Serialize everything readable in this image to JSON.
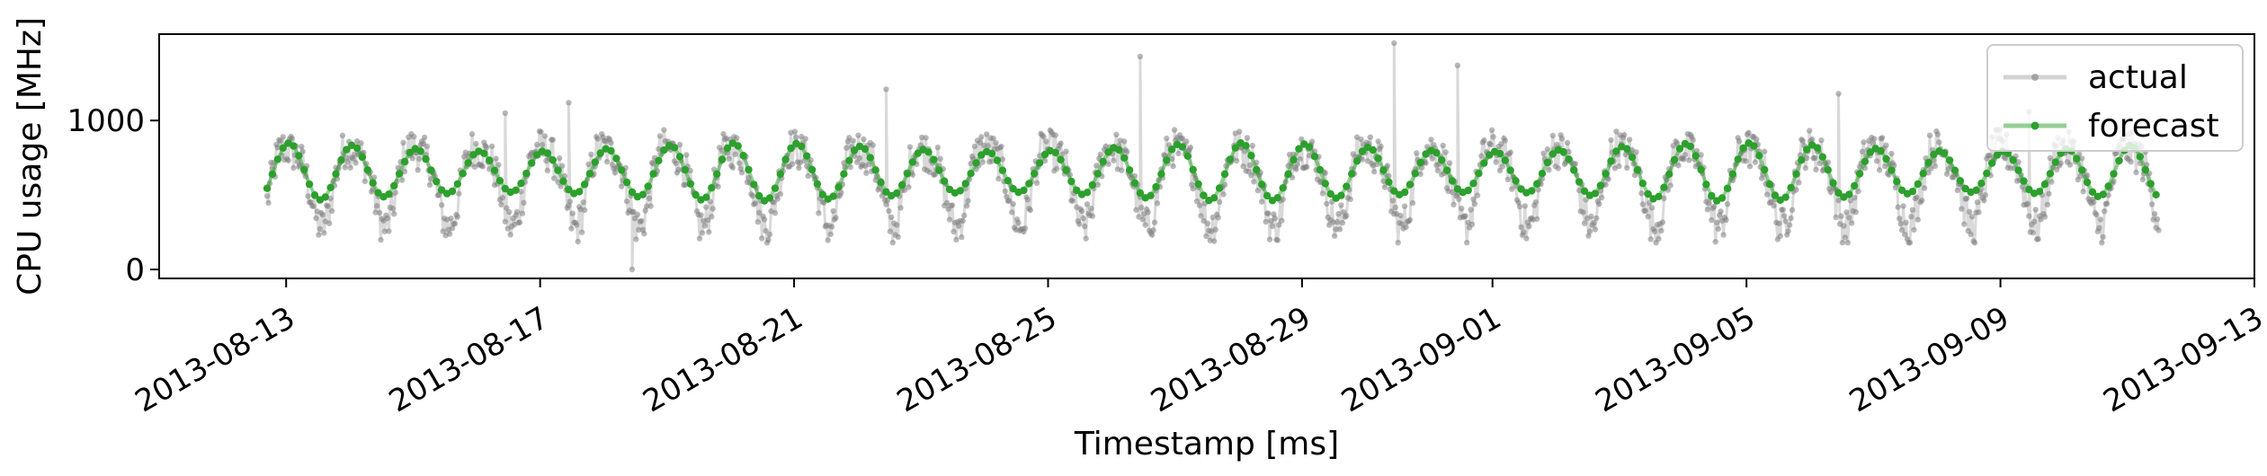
{
  "chart_data": {
    "type": "line",
    "title": "",
    "xlabel": "Timestamp [ms]",
    "ylabel": "CPU usage [MHz]",
    "x_range": [
      "2013-08-11",
      "2013-09-13"
    ],
    "ylim": [
      -60,
      1580
    ],
    "x_ticks": [
      "2013-08-13",
      "2013-08-17",
      "2013-08-21",
      "2013-08-25",
      "2013-08-29",
      "2013-09-01",
      "2013-09-05",
      "2013-09-09",
      "2013-09-13"
    ],
    "y_ticks": [
      0,
      1000
    ],
    "grid": false,
    "legend": {
      "placement": "top-right",
      "entries": [
        "actual",
        "forecast"
      ]
    },
    "series": [
      {
        "name": "actual",
        "color": "#808080",
        "start": "2013-08-12",
        "end": "2013-09-11",
        "typical_range": [
          250,
          1000
        ],
        "peaks": [
          {
            "date": "2013-08-26",
            "value": 1430
          },
          {
            "date": "2013-08-30",
            "value": 1520
          },
          {
            "date": "2013-08-31",
            "value": 1370
          },
          {
            "date": "2013-08-16",
            "value": 1050
          },
          {
            "date": "2013-08-17",
            "value": 1120
          },
          {
            "date": "2013-08-22",
            "value": 1210
          },
          {
            "date": "2013-09-06",
            "value": 1180
          },
          {
            "date": "2013-09-09",
            "value": 1060
          },
          {
            "date": "2013-08-18",
            "value": 0
          }
        ]
      },
      {
        "name": "forecast",
        "color": "#2ca02c",
        "start": "2013-08-12",
        "end": "2013-09-11",
        "daily_min": 460,
        "daily_max": 850
      }
    ]
  }
}
